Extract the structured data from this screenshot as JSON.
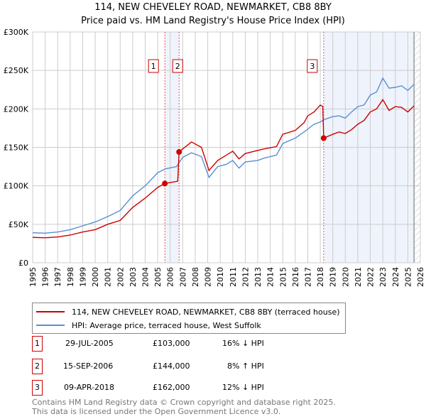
{
  "chart_data": {
    "type": "line",
    "title": "114, NEW CHEVELEY ROAD, NEWMARKET, CB8 8BY",
    "subtitle": "Price paid vs. HM Land Registry's House Price Index (HPI)",
    "xlim": [
      1995,
      2026
    ],
    "ylim": [
      0,
      300000
    ],
    "yticks": [
      {
        "v": 0,
        "label": "£0"
      },
      {
        "v": 50000,
        "label": "£50K"
      },
      {
        "v": 100000,
        "label": "£100K"
      },
      {
        "v": 150000,
        "label": "£150K"
      },
      {
        "v": 200000,
        "label": "£200K"
      },
      {
        "v": 250000,
        "label": "£250K"
      },
      {
        "v": 300000,
        "label": "£300K"
      }
    ],
    "xticks": [
      "1995",
      "1996",
      "1997",
      "1998",
      "1999",
      "2000",
      "2001",
      "2002",
      "2003",
      "2004",
      "2005",
      "2006",
      "2007",
      "2008",
      "2009",
      "2010",
      "2011",
      "2012",
      "2013",
      "2014",
      "2015",
      "2016",
      "2017",
      "2018",
      "2019",
      "2020",
      "2021",
      "2022",
      "2023",
      "2024",
      "2025",
      "2026"
    ],
    "series": [
      {
        "name": "114, NEW CHEVELEY ROAD, NEWMARKET, CB8 8BY (terraced house)",
        "color": "#cc0000",
        "points": [
          [
            1995,
            33000
          ],
          [
            1996,
            32500
          ],
          [
            1997,
            33500
          ],
          [
            1998,
            36000
          ],
          [
            1999,
            40000
          ],
          [
            2000,
            43000
          ],
          [
            2001,
            50000
          ],
          [
            2002,
            55000
          ],
          [
            2003,
            72000
          ],
          [
            2004,
            84000
          ],
          [
            2005,
            98000
          ],
          [
            2005.57,
            103000
          ],
          [
            2006.6,
            106000
          ],
          [
            2006.71,
            144000
          ],
          [
            2007,
            148000
          ],
          [
            2007.7,
            157000
          ],
          [
            2008.5,
            150000
          ],
          [
            2009.1,
            120000
          ],
          [
            2009.8,
            133000
          ],
          [
            2010.5,
            140000
          ],
          [
            2011,
            145000
          ],
          [
            2011.5,
            135000
          ],
          [
            2012,
            142000
          ],
          [
            2013,
            146000
          ],
          [
            2013.5,
            148000
          ],
          [
            2014.5,
            151000
          ],
          [
            2015,
            167000
          ],
          [
            2016,
            172000
          ],
          [
            2016.7,
            182000
          ],
          [
            2017,
            191000
          ],
          [
            2017.5,
            196000
          ],
          [
            2018,
            205000
          ],
          [
            2018.2,
            203000
          ],
          [
            2018.27,
            162000
          ],
          [
            2019,
            167000
          ],
          [
            2019.5,
            170000
          ],
          [
            2020,
            168000
          ],
          [
            2020.5,
            173000
          ],
          [
            2021,
            180000
          ],
          [
            2021.5,
            185000
          ],
          [
            2022,
            196000
          ],
          [
            2022.5,
            200000
          ],
          [
            2023,
            212000
          ],
          [
            2023.5,
            198000
          ],
          [
            2024,
            203000
          ],
          [
            2024.5,
            202000
          ],
          [
            2025,
            196000
          ],
          [
            2025.5,
            204000
          ]
        ]
      },
      {
        "name": "HPI: Average price, terraced house, West Suffolk",
        "color": "#5b8fd0",
        "points": [
          [
            1995,
            39000
          ],
          [
            1996,
            38500
          ],
          [
            1997,
            40000
          ],
          [
            1998,
            43000
          ],
          [
            1999,
            48000
          ],
          [
            2000,
            53000
          ],
          [
            2001,
            60000
          ],
          [
            2002,
            68000
          ],
          [
            2003,
            87000
          ],
          [
            2004,
            100000
          ],
          [
            2005,
            117000
          ],
          [
            2005.6,
            122000
          ],
          [
            2006.5,
            125000
          ],
          [
            2007,
            137000
          ],
          [
            2007.7,
            143000
          ],
          [
            2008.5,
            138000
          ],
          [
            2009.1,
            111000
          ],
          [
            2009.8,
            125000
          ],
          [
            2010.5,
            128000
          ],
          [
            2011,
            133000
          ],
          [
            2011.5,
            123000
          ],
          [
            2012,
            131000
          ],
          [
            2013,
            133000
          ],
          [
            2013.5,
            136000
          ],
          [
            2014.5,
            140000
          ],
          [
            2015,
            155000
          ],
          [
            2016,
            162000
          ],
          [
            2016.7,
            170000
          ],
          [
            2017.5,
            180000
          ],
          [
            2018,
            183000
          ],
          [
            2018.3,
            186000
          ],
          [
            2019,
            190000
          ],
          [
            2019.5,
            191000
          ],
          [
            2020,
            188000
          ],
          [
            2020.5,
            196000
          ],
          [
            2021,
            203000
          ],
          [
            2021.5,
            205000
          ],
          [
            2022,
            218000
          ],
          [
            2022.5,
            222000
          ],
          [
            2023,
            240000
          ],
          [
            2023.5,
            227000
          ],
          [
            2024,
            228000
          ],
          [
            2024.5,
            230000
          ],
          [
            2025,
            224000
          ],
          [
            2025.5,
            232000
          ]
        ]
      }
    ],
    "sales": [
      {
        "id": "1",
        "x": 2005.57,
        "price": 103000,
        "date": "29-JUL-2005",
        "price_label": "£103,000",
        "hpi": "16% ↓ HPI"
      },
      {
        "id": "2",
        "x": 2006.71,
        "price": 144000,
        "date": "15-SEP-2006",
        "price_label": "£144,000",
        "hpi": "8% ↑ HPI"
      },
      {
        "id": "3",
        "x": 2018.27,
        "price": 162000,
        "date": "09-APR-2018",
        "price_label": "£162,000",
        "hpi": "12% ↓ HPI"
      }
    ],
    "data_end": 2025.5
  },
  "footer": {
    "line1": "Contains HM Land Registry data © Crown copyright and database right 2025.",
    "line2": "This data is licensed under the Open Government Licence v3.0."
  }
}
